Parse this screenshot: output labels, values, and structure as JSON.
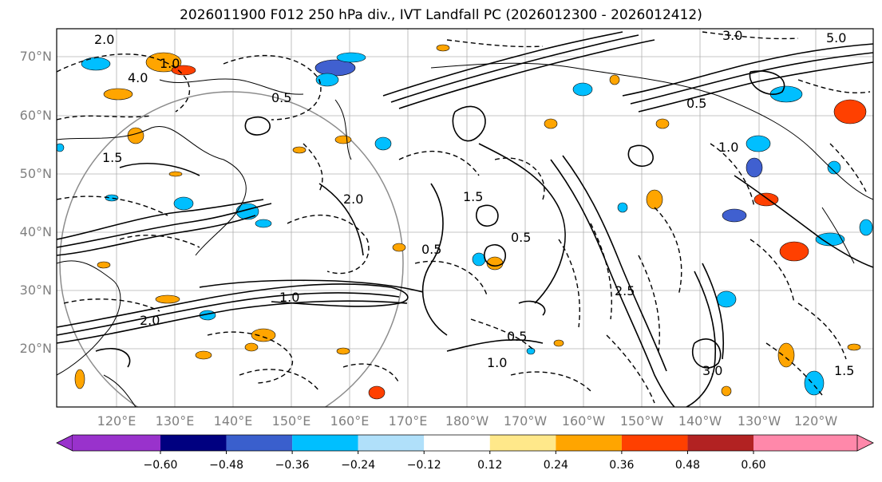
{
  "title": "2026011900 F012 250 hPa div., IVT Landfall PC (2026012300 - 2026012412)",
  "map": {
    "lat_labels": [
      "70°N",
      "60°N",
      "50°N",
      "40°N",
      "30°N",
      "20°N"
    ],
    "lon_labels": [
      "120°E",
      "130°E",
      "140°E",
      "150°E",
      "160°E",
      "170°E",
      "180°W",
      "170°W",
      "160°W",
      "150°W",
      "140°W",
      "130°W",
      "120°W"
    ],
    "contour_labels": [
      "2.0",
      "1.0",
      "4.0",
      "3.0",
      "5.0",
      "1.5",
      "0.5",
      "2.0",
      "1.0",
      "0.5",
      "1.5",
      "0.5",
      "2.0",
      "1.0",
      "0.5",
      "3.0",
      "1.0",
      "0.5",
      "2.5",
      "1.5"
    ],
    "colors": {
      "land_outline": "#000000",
      "grid": "#b0b0b0",
      "circle": "#8c8c8c",
      "neg_strong": "#4060d0",
      "neg": "#00bfff",
      "pos": "#ffa500",
      "pos_strong": "#ff4000"
    }
  },
  "colorbar": {
    "colors": [
      "#9932cc",
      "#000080",
      "#3a5fcd",
      "#00bfff",
      "#b0e0fa",
      "#ffffff",
      "#ffe88a",
      "#ffa500",
      "#ff4000",
      "#b22222",
      "#ff88aa"
    ],
    "tick_labels": [
      "−0.60",
      "−0.48",
      "−0.36",
      "−0.24",
      "−0.12",
      "0.12",
      "0.24",
      "0.36",
      "0.48",
      "0.60"
    ]
  }
}
